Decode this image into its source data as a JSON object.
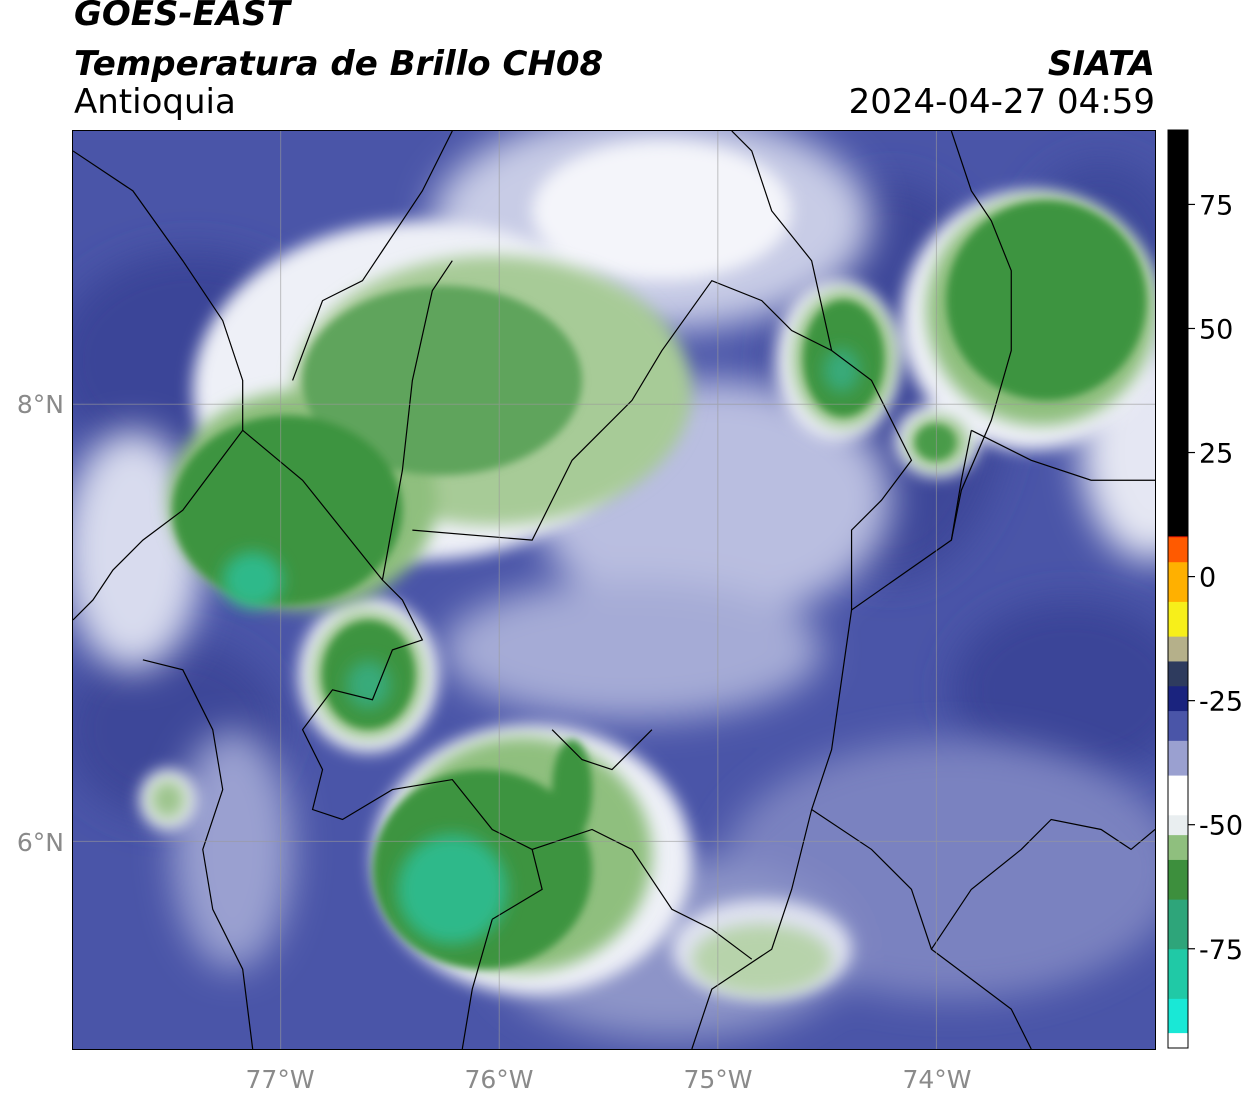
{
  "header": {
    "satellite": "GOES-EAST",
    "product": "Temperatura de Brillo CH08",
    "region": "Antioquia",
    "organization": "SIATA",
    "timestamp": "2024-04-27 04:59"
  },
  "map": {
    "lon_range": [
      -77.95,
      -73.0
    ],
    "lat_range": [
      5.05,
      9.25
    ],
    "lon_ticks": [
      {
        "value": -77,
        "label": "77°W"
      },
      {
        "value": -76,
        "label": "76°W"
      },
      {
        "value": -75,
        "label": "75°W"
      },
      {
        "value": -74,
        "label": "74°W"
      }
    ],
    "lat_ticks": [
      {
        "value": 8,
        "label": "8°N"
      },
      {
        "value": 6,
        "label": "6°N"
      }
    ],
    "gridlines": true,
    "colors": {
      "background_cloud_free": "#4a55a8",
      "deep_blue": "#3c4699",
      "white_band": "#f2f3f8",
      "light_green": "#8fbf7e",
      "green": "#3d9440",
      "teal": "#2fb98a",
      "coast": "#000000"
    }
  },
  "colorbar": {
    "range": [
      -95,
      90
    ],
    "ticks": [
      {
        "value": 75,
        "label": "75"
      },
      {
        "value": 50,
        "label": "50"
      },
      {
        "value": 25,
        "label": "25"
      },
      {
        "value": 0,
        "label": "0"
      },
      {
        "value": -25,
        "label": "-25"
      },
      {
        "value": -50,
        "label": "-50"
      },
      {
        "value": -75,
        "label": "-75"
      }
    ]
  }
}
